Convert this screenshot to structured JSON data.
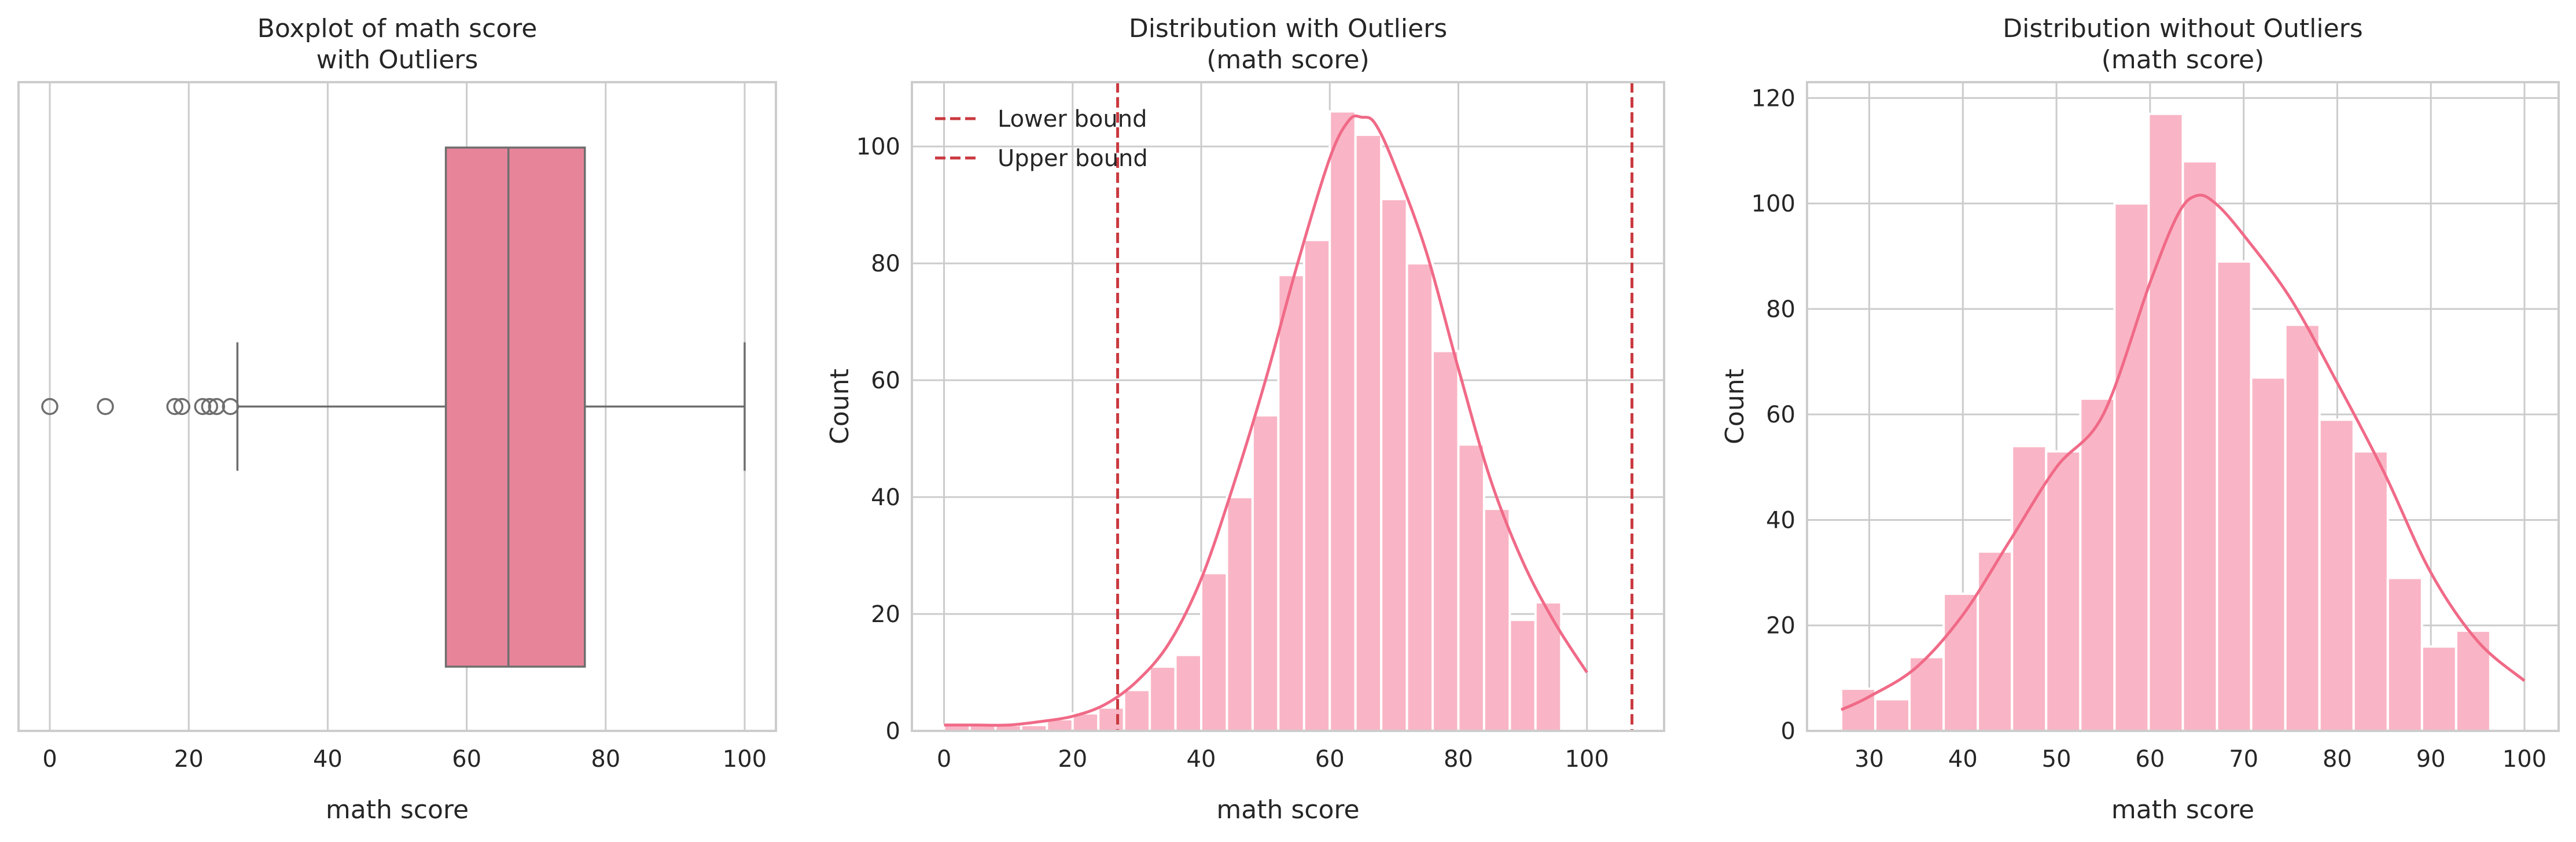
{
  "chart_data": [
    {
      "type": "boxplot",
      "title": "Boxplot of math score\nwith Outliers",
      "xlabel": "math score",
      "ylabel": "",
      "xlim": [
        -4.5,
        104.5
      ],
      "xticks": [
        0,
        20,
        40,
        60,
        80,
        100
      ],
      "grid": true,
      "box": {
        "whisker_low": 27,
        "q1": 57,
        "median": 66,
        "q3": 77,
        "whisker_high": 100
      },
      "outliers": [
        0,
        8,
        18,
        19,
        22,
        23,
        24,
        26
      ],
      "colors": {
        "box": "#e8849a",
        "line": "#6e6e6e"
      }
    },
    {
      "type": "histogram",
      "title": "Distribution with Outliers\n(math score)",
      "xlabel": "math score",
      "ylabel": "Count",
      "xlim": [
        -5,
        112
      ],
      "ylim": [
        0,
        111
      ],
      "xticks": [
        0,
        20,
        40,
        60,
        80,
        100
      ],
      "yticks": [
        0,
        20,
        40,
        60,
        80,
        100
      ],
      "grid": true,
      "bin_start": 0,
      "bin_width": 4,
      "counts": [
        1,
        1,
        1,
        1,
        2,
        3,
        4,
        7,
        11,
        13,
        27,
        40,
        54,
        78,
        84,
        106,
        102,
        91,
        80,
        65,
        49,
        38,
        19,
        22
      ],
      "kde": [
        [
          0,
          1
        ],
        [
          5,
          1
        ],
        [
          10,
          1
        ],
        [
          15,
          1.6
        ],
        [
          20,
          2.5
        ],
        [
          25,
          4.5
        ],
        [
          30,
          8.5
        ],
        [
          35,
          15
        ],
        [
          40,
          26
        ],
        [
          45,
          42
        ],
        [
          50,
          60
        ],
        [
          55,
          80
        ],
        [
          60,
          98
        ],
        [
          63,
          104.5
        ],
        [
          65,
          105
        ],
        [
          67,
          104
        ],
        [
          70,
          97
        ],
        [
          75,
          82
        ],
        [
          80,
          62
        ],
        [
          85,
          43
        ],
        [
          90,
          29
        ],
        [
          95,
          18.5
        ],
        [
          100,
          10
        ]
      ],
      "lines": [
        {
          "name": "Lower bound",
          "x": 27,
          "style": "dashed"
        },
        {
          "name": "Upper bound",
          "x": 107,
          "style": "dashed"
        }
      ],
      "legend": {
        "position": "top-left",
        "entries": [
          "Lower bound",
          "Upper bound"
        ]
      },
      "colors": {
        "bar": "#f9b5c5",
        "kde": "#f06a87",
        "bound": "#c9393f"
      }
    },
    {
      "type": "histogram",
      "title": "Distribution without Outliers\n(math score)",
      "xlabel": "math score",
      "ylabel": "Count",
      "xlim": [
        23.35,
        103.65
      ],
      "ylim": [
        0,
        123
      ],
      "xticks": [
        30,
        40,
        50,
        60,
        70,
        80,
        90,
        100
      ],
      "yticks": [
        0,
        20,
        40,
        60,
        80,
        100,
        120
      ],
      "grid": true,
      "bin_start": 27,
      "bin_width": 3.65,
      "counts": [
        8,
        6,
        14,
        26,
        34,
        54,
        53,
        63,
        100,
        117,
        108,
        89,
        67,
        77,
        59,
        53,
        29,
        16,
        19
      ],
      "kde": [
        [
          27,
          4
        ],
        [
          30,
          6.5
        ],
        [
          35,
          12
        ],
        [
          40,
          22
        ],
        [
          45,
          36
        ],
        [
          50,
          50
        ],
        [
          55,
          60
        ],
        [
          60,
          85
        ],
        [
          63,
          98
        ],
        [
          65,
          101.5
        ],
        [
          67,
          100
        ],
        [
          70,
          94
        ],
        [
          75,
          82
        ],
        [
          80,
          66
        ],
        [
          85,
          49
        ],
        [
          90,
          30
        ],
        [
          95,
          17
        ],
        [
          100,
          9.5
        ]
      ],
      "colors": {
        "bar": "#f9b5c5",
        "kde": "#f06a87"
      }
    }
  ]
}
